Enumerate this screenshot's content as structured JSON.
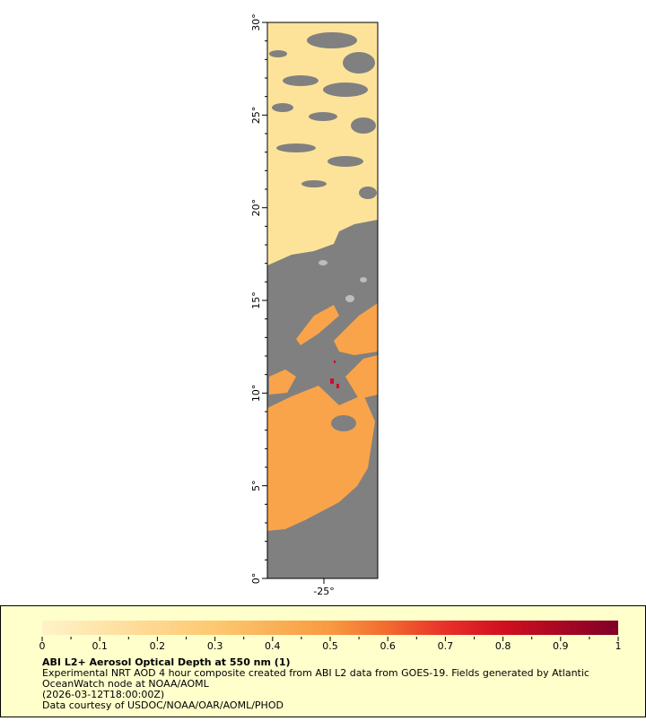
{
  "map": {
    "lat_labels": [
      "0°",
      "5°",
      "10°",
      "15°",
      "20°",
      "25°",
      "30°"
    ],
    "lon_labels": [
      "-25°"
    ]
  },
  "legend": {
    "ticks": [
      0,
      0.1,
      0.2,
      0.3,
      0.4,
      0.5,
      0.6,
      0.7,
      0.8,
      0.9,
      1
    ],
    "title": "ABI L2+ Aerosol Optical Depth at 550 nm (1)",
    "lines": [
      "Experimental NRT AOD 4 hour composite created from ABI L2 data from GOES-19. Fields generated by Atlantic",
      "OceanWatch node at NOAA/AOML",
      "(2026-03-12T18:00:00Z)",
      "Data courtesy of USDOC/NOAA/OAR/AOML/PHOD"
    ]
  }
}
